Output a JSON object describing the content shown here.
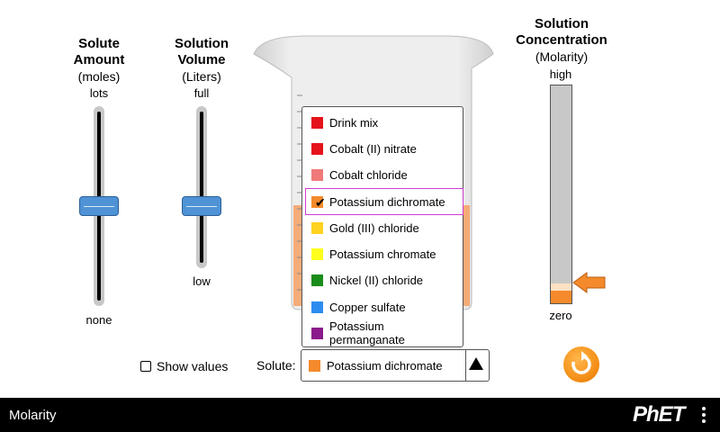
{
  "solute_amount": {
    "title_line1": "Solute",
    "title_line2": "Amount",
    "units": "(moles)",
    "top_label": "lots",
    "bottom_label": "none",
    "level": 0.5
  },
  "solution_volume": {
    "title_line1": "Solution",
    "title_line2": "Volume",
    "units": "(Liters)",
    "top_label": "full",
    "bottom_label": "low",
    "level": 0.5
  },
  "concentration": {
    "title_line1": "Solution",
    "title_line2": "Concentration",
    "units": "(Molarity)",
    "top_label": "high",
    "bottom_label": "zero",
    "level": 0.1
  },
  "show_values": {
    "label": "Show values",
    "checked": false
  },
  "solute_selector": {
    "label": "Solute:",
    "selected": "Potassium dichromate",
    "options": [
      {
        "name": "Drink mix",
        "color": "#e5131b"
      },
      {
        "name": "Cobalt (II) nitrate",
        "color": "#e5131b"
      },
      {
        "name": "Cobalt chloride",
        "color": "#f07a7a"
      },
      {
        "name": "Potassium dichromate",
        "color": "#f48a2c"
      },
      {
        "name": "Gold (III) chloride",
        "color": "#ffd21f"
      },
      {
        "name": "Potassium chromate",
        "color": "#ffff1e"
      },
      {
        "name": "Nickel (II) chloride",
        "color": "#1a8c1a"
      },
      {
        "name": "Copper sulfate",
        "color": "#2d8cf0"
      },
      {
        "name": "Potassium permanganate",
        "color": "#8b1a8b"
      }
    ]
  },
  "sim_title": "Molarity",
  "brand": "PhET",
  "colors": {
    "solution": "#f4a46a",
    "thumb": "#4f93d6",
    "arrow": "#f48a2c",
    "highlight": "#d23cd2"
  }
}
